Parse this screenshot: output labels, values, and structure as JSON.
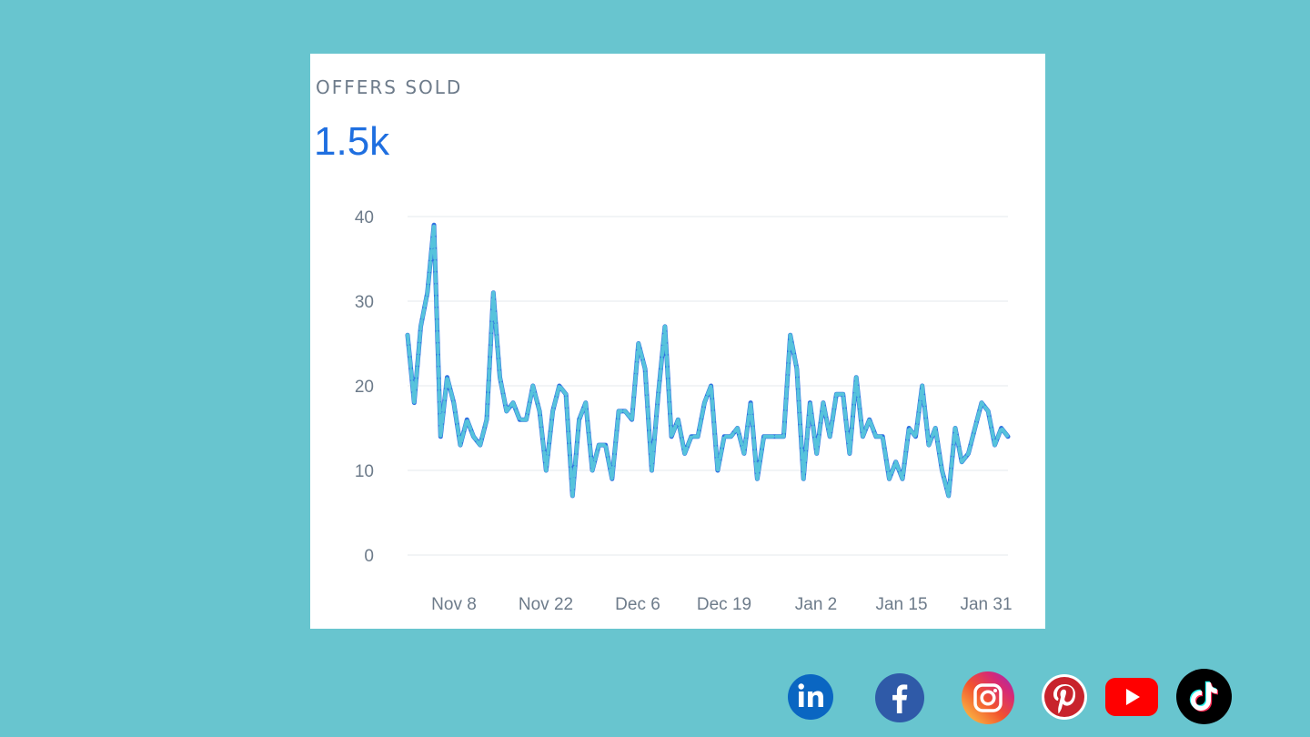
{
  "card": {
    "label": "OFFERS SOLD",
    "value": "1.5k"
  },
  "chart_data": {
    "type": "line",
    "title": "",
    "xlabel": "",
    "ylabel": "",
    "ylim": [
      0,
      40
    ],
    "yticks": [
      0,
      10,
      20,
      30,
      40
    ],
    "xtick_labels": [
      "Nov 8",
      "Nov 22",
      "Dec 6",
      "Dec 19",
      "Jan 2",
      "Jan 15",
      "Jan 31"
    ],
    "grid": true,
    "colors": {
      "line": "#2f6fe0",
      "dash": "#56c3dc",
      "grid": "#eef1f4"
    },
    "series": [
      {
        "values": [
          26,
          18,
          27,
          31,
          39,
          14,
          21,
          18,
          13,
          16,
          14,
          13,
          16,
          31,
          21,
          17,
          18,
          16,
          16,
          20,
          17,
          10,
          17,
          20,
          19,
          7,
          16,
          18,
          10,
          13,
          13,
          9,
          17,
          17,
          16,
          25,
          22,
          10,
          19,
          27,
          14,
          16,
          12,
          14,
          14,
          18,
          20,
          10,
          14,
          14,
          15,
          12,
          18,
          9,
          14,
          14,
          14,
          14,
          26,
          22,
          9,
          18,
          12,
          18,
          14,
          19,
          19,
          12,
          21,
          14,
          16,
          14,
          14,
          9,
          11,
          9,
          15,
          14,
          20,
          13,
          15,
          10,
          7,
          15,
          11,
          12,
          15,
          18,
          17,
          13,
          15,
          14
        ]
      }
    ]
  },
  "social": {
    "items": [
      {
        "name": "linkedin",
        "icon": "linkedin-icon",
        "color": "#0a66c2"
      },
      {
        "name": "facebook",
        "icon": "facebook-icon",
        "color": "#2f5aa8"
      },
      {
        "name": "instagram",
        "icon": "instagram-icon",
        "color": "#e1306c"
      },
      {
        "name": "pinterest",
        "icon": "pinterest-icon",
        "color": "#c8232c"
      },
      {
        "name": "youtube",
        "icon": "youtube-icon",
        "color": "#ff0000"
      },
      {
        "name": "tiktok",
        "icon": "tiktok-icon",
        "color": "#000000"
      }
    ]
  }
}
